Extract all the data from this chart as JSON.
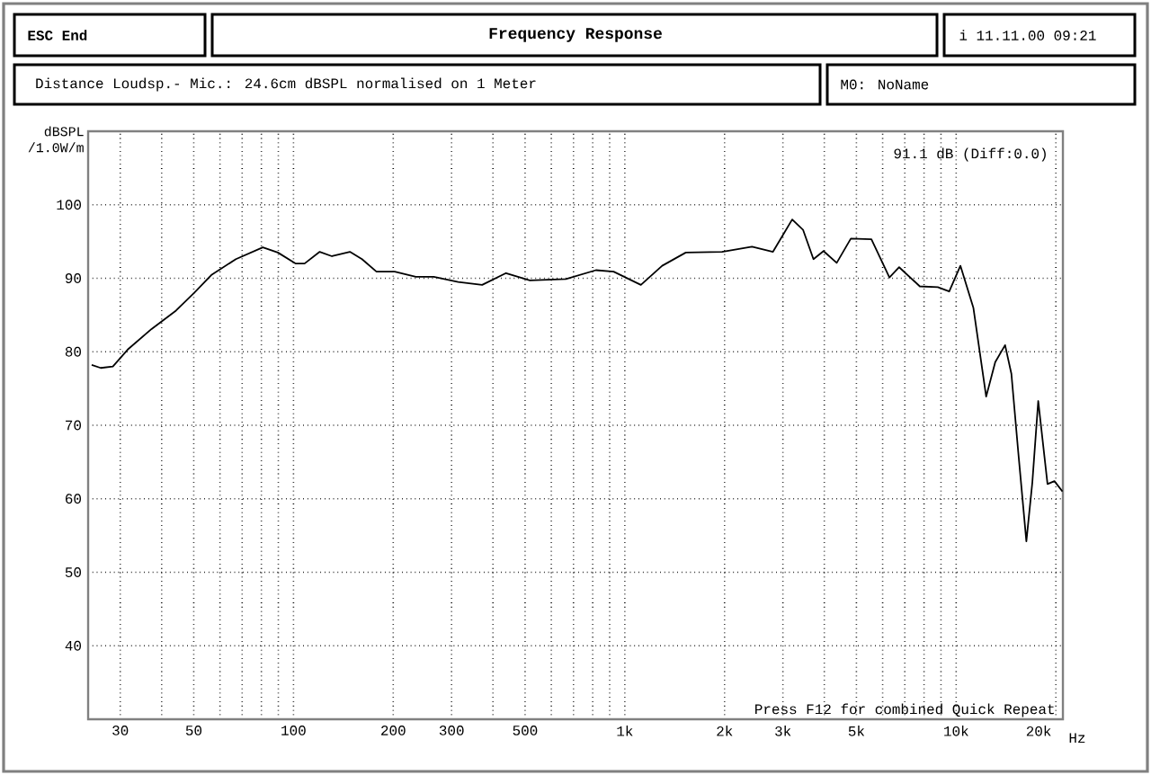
{
  "chart_data": {
    "type": "line",
    "title": "Frequency Response",
    "subtitle": "Distance Loudsp.- Mic.: 24.6cm dBSPL normalised on 1 Meter",
    "ylabel": "dBSPL /1.0W/m",
    "annotations": [
      "ESC End",
      "i 11.11.00 09:21",
      "M0: NoName",
      "91.1 dB (Diff:0.0)",
      "Press F12 for combined Quick Repeat"
    ],
    "x": [
      24.6,
      26.2,
      28.5,
      31.6,
      37.3,
      44.2,
      50.1,
      56.7,
      67,
      80.8,
      89.7,
      101.6,
      108,
      120,
      130.6,
      148,
      161,
      178,
      202,
      234,
      265,
      314,
      371,
      438,
      517,
      664,
      818,
      925,
      1118,
      1296,
      1528,
      1965,
      2420,
      2800,
      3200,
      3450,
      3710,
      3980,
      4360,
      4810,
      5550,
      6290,
      6730,
      7770,
      8800,
      9530,
      10300,
      11270,
      12320,
      13120,
      14050,
      14680,
      15400,
      16290,
      16980,
      17690,
      18870,
      19800,
      20940
    ],
    "series": [
      {
        "color": "#000000",
        "values": [
          78.2,
          77.8,
          78.0,
          80.3,
          83.1,
          85.6,
          88.0,
          90.5,
          92.6,
          94.2,
          93.5,
          92.0,
          92.0,
          93.6,
          93.0,
          93.6,
          92.6,
          90.9,
          90.9,
          90.2,
          90.2,
          89.5,
          89.1,
          90.7,
          89.7,
          89.9,
          91.1,
          90.9,
          89.1,
          91.7,
          93.5,
          93.6,
          94.3,
          93.6,
          98.0,
          96.6,
          92.6,
          93.7,
          92.1,
          95.4,
          95.3,
          90.1,
          91.5,
          88.9,
          88.8,
          88.2,
          91.7,
          86.0,
          73.9,
          78.6,
          80.9,
          77.0,
          66.3,
          54.2,
          62.2,
          73.3,
          62.0,
          62.4,
          61.0
        ]
      }
    ],
    "log": "x",
    "xlim": [
      24,
      21000
    ],
    "xticks": [
      30,
      {
        "value": 40,
        "label": null
      },
      50,
      {
        "value": 60,
        "label": null
      },
      {
        "value": 70,
        "label": null
      },
      {
        "value": 80,
        "label": null
      },
      {
        "value": 90,
        "label": null
      },
      100,
      200,
      300,
      {
        "value": 400,
        "label": null
      },
      500,
      {
        "value": 600,
        "label": null
      },
      {
        "value": 700,
        "label": null
      },
      {
        "value": 800,
        "label": null
      },
      {
        "value": 900,
        "label": null
      },
      {
        "value": 1000,
        "label": "1k"
      },
      {
        "value": 2000,
        "label": "2k"
      },
      {
        "value": 3000,
        "label": "3k"
      },
      {
        "value": 4000,
        "label": null
      },
      {
        "value": 5000,
        "label": "5k"
      },
      {
        "value": 6000,
        "label": null
      },
      {
        "value": 7000,
        "label": null
      },
      {
        "value": 8000,
        "label": null
      },
      {
        "value": 9000,
        "label": null
      },
      {
        "value": 10000,
        "label": "10k"
      },
      {
        "value": 20000,
        "label": "20k"
      }
    ],
    "xlabel": "Hz",
    "ylim": [
      30,
      110
    ],
    "yticks": [
      40,
      50,
      60,
      70,
      80,
      90,
      100
    ],
    "grid": true,
    "marker": "none",
    "line_style": "solid"
  }
}
